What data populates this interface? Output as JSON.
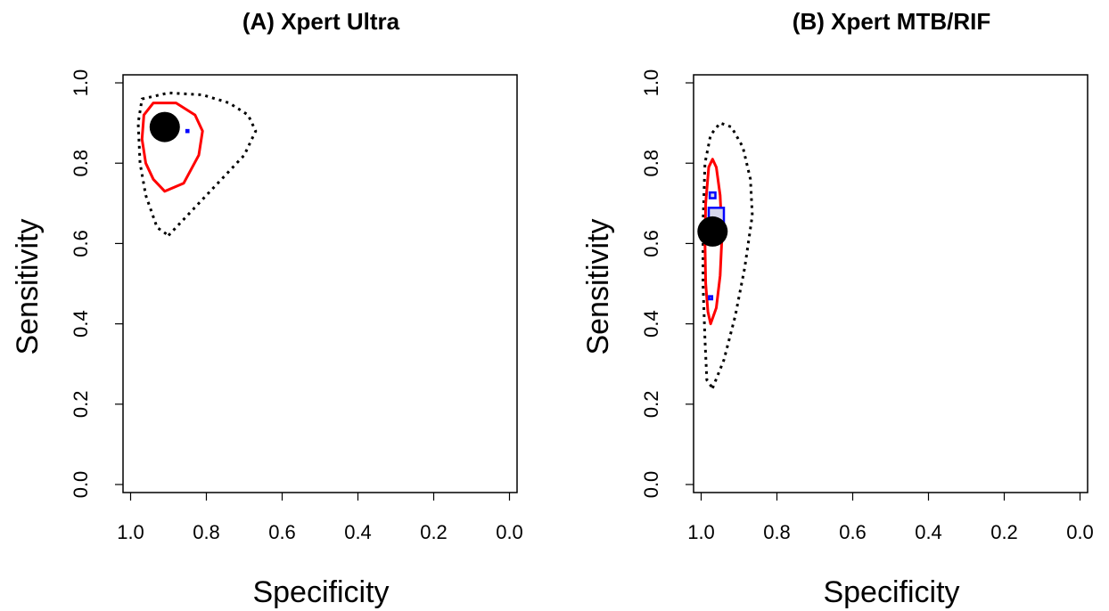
{
  "chart_data": [
    {
      "type": "scatter",
      "title": "(A) Xpert Ultra",
      "xlabel": "Specificity",
      "ylabel": "Sensitivity",
      "xlim": [
        1.0,
        0.0
      ],
      "ylim": [
        0.0,
        1.0
      ],
      "x_ticks": [
        "1.0",
        "0.8",
        "0.6",
        "0.4",
        "0.2",
        "0.0"
      ],
      "y_ticks": [
        "0.0",
        "0.2",
        "0.4",
        "0.6",
        "0.8",
        "1.0"
      ],
      "summary_point": {
        "specificity": 0.91,
        "sensitivity": 0.89,
        "color": "#000000"
      },
      "studies": [
        {
          "specificity": 0.92,
          "sensitivity": 0.89,
          "size": 0.04
        },
        {
          "specificity": 0.85,
          "sensitivity": 0.88,
          "size": 0.005
        }
      ],
      "confidence_region": [
        [
          0.91,
          0.73
        ],
        [
          0.86,
          0.75
        ],
        [
          0.82,
          0.82
        ],
        [
          0.81,
          0.88
        ],
        [
          0.83,
          0.92
        ],
        [
          0.88,
          0.95
        ],
        [
          0.94,
          0.95
        ],
        [
          0.965,
          0.92
        ],
        [
          0.97,
          0.86
        ],
        [
          0.96,
          0.8
        ],
        [
          0.94,
          0.76
        ]
      ],
      "prediction_region": [
        [
          0.9,
          0.62
        ],
        [
          0.84,
          0.68
        ],
        [
          0.76,
          0.76
        ],
        [
          0.7,
          0.82
        ],
        [
          0.67,
          0.88
        ],
        [
          0.69,
          0.92
        ],
        [
          0.74,
          0.95
        ],
        [
          0.81,
          0.97
        ],
        [
          0.9,
          0.975
        ],
        [
          0.97,
          0.96
        ],
        [
          0.98,
          0.9
        ],
        [
          0.975,
          0.8
        ],
        [
          0.96,
          0.72
        ],
        [
          0.93,
          0.64
        ]
      ],
      "colors": {
        "confidence": "#ff0000",
        "prediction": "#000000",
        "study": "#0000ff"
      }
    },
    {
      "type": "scatter",
      "title": "(B) Xpert MTB/RIF",
      "xlabel": "Specificity",
      "ylabel": "Sensitivity",
      "xlim": [
        1.0,
        0.0
      ],
      "ylim": [
        0.0,
        1.0
      ],
      "x_ticks": [
        "1.0",
        "0.8",
        "0.6",
        "0.4",
        "0.2",
        "0.0"
      ],
      "y_ticks": [
        "0.0",
        "0.2",
        "0.4",
        "0.6",
        "0.8",
        "1.0"
      ],
      "summary_point": {
        "specificity": 0.97,
        "sensitivity": 0.63,
        "color": "#000000"
      },
      "studies": [
        {
          "specificity": 0.96,
          "sensitivity": 0.67,
          "size": 0.04
        },
        {
          "specificity": 0.97,
          "sensitivity": 0.72,
          "size": 0.015
        },
        {
          "specificity": 0.975,
          "sensitivity": 0.465,
          "size": 0.008
        }
      ],
      "confidence_region": [
        [
          0.975,
          0.4
        ],
        [
          0.96,
          0.44
        ],
        [
          0.95,
          0.52
        ],
        [
          0.945,
          0.62
        ],
        [
          0.95,
          0.72
        ],
        [
          0.96,
          0.79
        ],
        [
          0.97,
          0.81
        ],
        [
          0.98,
          0.79
        ],
        [
          0.988,
          0.7
        ],
        [
          0.99,
          0.6
        ],
        [
          0.988,
          0.5
        ],
        [
          0.982,
          0.43
        ]
      ],
      "prediction_region": [
        [
          0.97,
          0.24
        ],
        [
          0.94,
          0.31
        ],
        [
          0.91,
          0.42
        ],
        [
          0.885,
          0.54
        ],
        [
          0.865,
          0.67
        ],
        [
          0.87,
          0.76
        ],
        [
          0.89,
          0.84
        ],
        [
          0.92,
          0.89
        ],
        [
          0.95,
          0.9
        ],
        [
          0.975,
          0.87
        ],
        [
          0.99,
          0.8
        ],
        [
          0.995,
          0.65
        ],
        [
          0.995,
          0.5
        ],
        [
          0.99,
          0.36
        ],
        [
          0.985,
          0.26
        ]
      ],
      "colors": {
        "confidence": "#ff0000",
        "prediction": "#000000",
        "study": "#0000ff"
      }
    }
  ]
}
